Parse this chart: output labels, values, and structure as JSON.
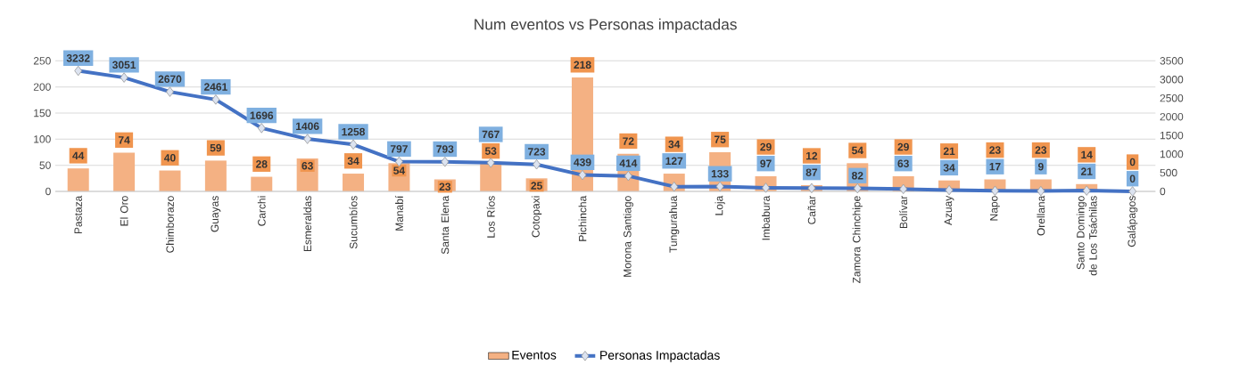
{
  "chart_data": {
    "type": "bar",
    "title": "Num eventos vs Personas impactadas",
    "categories": [
      "Pastaza",
      "El Oro",
      "Chimborazo",
      "Guayas",
      "Carchi",
      "Esmeraldas",
      "Sucumbíos",
      "Manabí",
      "Santa Elena",
      "Los Ríos",
      "Cotopaxi",
      "Pichincha",
      "Morona Santiago",
      "Tungurahua",
      "Loja",
      "Imbabura",
      "Cañar",
      "Zamora Chinchipe",
      "Bolívar",
      "Azuay",
      "Napo",
      "Orellana",
      "Santo Domingo de Los Tsáchilas",
      "Galápagos"
    ],
    "series": [
      {
        "name": "Eventos",
        "color": "#f4b183",
        "values": [
          44,
          74,
          40,
          59,
          28,
          63,
          34,
          54,
          23,
          53,
          25,
          218,
          72,
          34,
          75,
          29,
          12,
          54,
          29,
          21,
          23,
          23,
          14,
          0
        ]
      },
      {
        "name": "Personas Impactadas",
        "type": "line",
        "axis": "y2",
        "color": "#4472c4",
        "values": [
          3232,
          3051,
          2670,
          2461,
          1696,
          1406,
          1258,
          797,
          793,
          767,
          723,
          439,
          414,
          127,
          133,
          97,
          87,
          82,
          63,
          34,
          17,
          9,
          21,
          0
        ]
      }
    ],
    "ylim": [
      0,
      250
    ],
    "yticks": [
      0,
      50,
      100,
      150,
      200,
      250
    ],
    "y2lim": [
      0,
      3500
    ],
    "y2ticks": [
      0,
      500,
      1000,
      1500,
      2000,
      2500,
      3000,
      3500
    ],
    "grid": "y",
    "legend": "bottom",
    "marker": "diamond",
    "data_labels": true
  }
}
